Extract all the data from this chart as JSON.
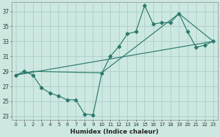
{
  "title": "",
  "xlabel": "Humidex (Indice chaleur)",
  "bg_color": "#cce8e0",
  "grid_color": "#aacccc",
  "line_color": "#2d7a6e",
  "xlim": [
    -0.5,
    23.5
  ],
  "ylim": [
    22.5,
    38.2
  ],
  "xticks": [
    0,
    1,
    2,
    3,
    4,
    5,
    6,
    7,
    8,
    9,
    10,
    11,
    12,
    13,
    14,
    15,
    16,
    17,
    18,
    19,
    20,
    21,
    22,
    23
  ],
  "yticks": [
    23,
    25,
    27,
    29,
    31,
    33,
    35,
    37
  ],
  "line1_x": [
    0,
    1,
    2,
    3,
    4,
    5,
    6,
    7,
    8,
    9,
    10,
    11,
    12,
    13,
    14,
    15,
    16,
    17,
    18,
    19,
    20,
    21,
    22,
    23
  ],
  "line1_y": [
    28.5,
    29.0,
    28.5,
    26.8,
    26.1,
    25.7,
    25.2,
    25.2,
    23.3,
    23.2,
    28.7,
    31.0,
    32.3,
    34.0,
    34.3,
    37.8,
    35.3,
    35.5,
    35.5,
    36.7,
    34.3,
    32.2,
    32.5,
    33.0
  ],
  "line2_x": [
    0,
    2,
    10,
    19,
    23
  ],
  "line2_y": [
    28.5,
    29.0,
    28.8,
    36.7,
    33.0
  ],
  "line3_x": [
    0,
    23
  ],
  "line3_y": [
    28.5,
    33.0
  ]
}
